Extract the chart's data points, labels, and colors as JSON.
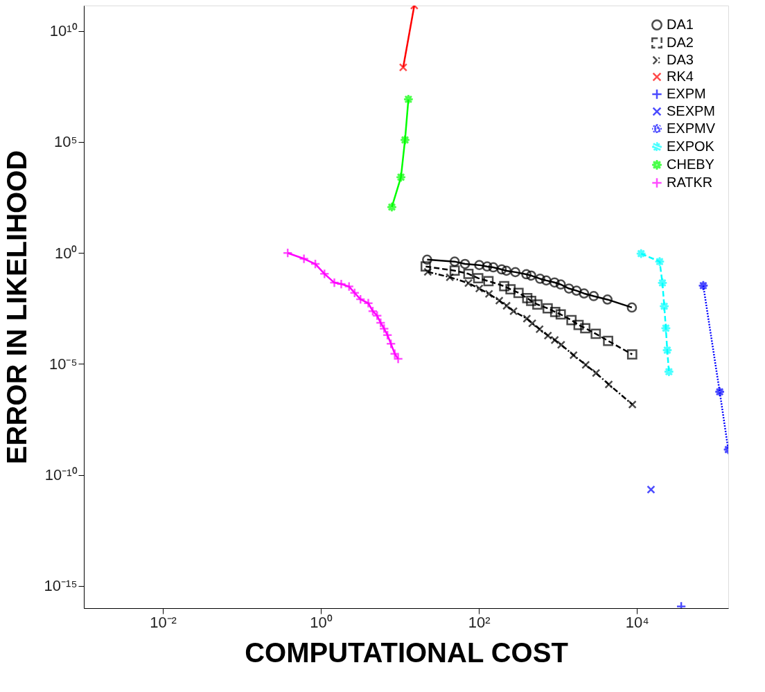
{
  "chart_data": {
    "type": "line",
    "xlabel": "COMPUTATIONAL COST",
    "ylabel": "ERROR IN LIKELIHOOD",
    "log": "xy",
    "grid": false,
    "legend": "top right",
    "xlim": [
      0.001,
      143000
    ],
    "ylim": [
      1e-16,
      140000000000.0
    ],
    "xticks": [
      {
        "value": 0.01,
        "label": "10⁻²"
      },
      {
        "value": 1,
        "label": "10⁰"
      },
      {
        "value": 100,
        "label": "10²"
      },
      {
        "value": 10000,
        "label": "10⁴"
      }
    ],
    "yticks": [
      {
        "value": 1e-15,
        "label": "10⁻¹⁵"
      },
      {
        "value": 1e-10,
        "label": "10⁻¹⁰"
      },
      {
        "value": 1e-05,
        "label": "10⁻⁵"
      },
      {
        "value": 1,
        "label": "10⁰"
      },
      {
        "value": 100000,
        "label": "10⁵"
      },
      {
        "value": 10000000000.0,
        "label": "10¹⁰"
      }
    ],
    "series": [
      {
        "name": "DA1",
        "color": "#000000",
        "marker": "circle",
        "line_style": "solid",
        "x": [
          22.1,
          49.3,
          66.6,
          101,
          127,
          152,
          194,
          223,
          289,
          398,
          458,
          594,
          711,
          905,
          1084,
          1378,
          1718,
          2140,
          2833,
          4227,
          8620
        ],
        "values": [
          0.5,
          0.41,
          0.32,
          0.286,
          0.247,
          0.225,
          0.182,
          0.158,
          0.137,
          0.11,
          0.096,
          0.069,
          0.058,
          0.047,
          0.038,
          0.025,
          0.02,
          0.015,
          0.0114,
          0.008,
          0.0035
        ]
      },
      {
        "name": "DA2",
        "color": "#000000",
        "marker": "square",
        "line_style": "dashed",
        "x": [
          21.2,
          49.3,
          73.6,
          98,
          132,
          209,
          251,
          317,
          409,
          458,
          549,
          741,
          923,
          1084,
          1483,
          1824,
          2214,
          3008,
          4313,
          8690
        ],
        "values": [
          0.247,
          0.16,
          0.115,
          0.073,
          0.054,
          0.032,
          0.023,
          0.016,
          0.0092,
          0.0069,
          0.0048,
          0.0032,
          0.0022,
          0.0017,
          0.00094,
          0.00057,
          0.00041,
          0.00023,
          0.00011,
          2.7e-05
        ]
      },
      {
        "name": "DA3",
        "color": "#000000",
        "marker": "cross",
        "line_style": "dashdot",
        "x": [
          22.5,
          42.8,
          73.6,
          101,
          134,
          181,
          224,
          274,
          404,
          473,
          586,
          747,
          912,
          1099,
          1574,
          2244,
          3034,
          4400,
          8750
        ],
        "values": [
          0.141,
          0.081,
          0.044,
          0.025,
          0.0144,
          0.0071,
          0.0042,
          0.0024,
          0.0011,
          0.00068,
          0.00037,
          0.00019,
          0.00012,
          7.3e-05,
          2.5e-05,
          9.1e-06,
          3.9e-06,
          1.2e-06,
          1.5e-07
        ]
      },
      {
        "name": "RK4",
        "color": "#ff0000",
        "marker": "cross",
        "line_style": "solid",
        "x": [
          11.0,
          15.2
        ],
        "values": [
          230000000,
          140000000000
        ]
      },
      {
        "name": "EXPM",
        "color": "#0000ff",
        "marker": "plus",
        "line_style": "solid",
        "x": [
          36300
        ],
        "values": [
          1.2e-16
        ]
      },
      {
        "name": "SEXPM",
        "color": "#0000ff",
        "marker": "cross",
        "line_style": "solid",
        "x": [
          15040
        ],
        "values": [
          2.2e-11
        ]
      },
      {
        "name": "EXPMV",
        "color": "#0000ff",
        "marker": "star",
        "line_style": "dotted",
        "x": [
          69000,
          111400,
          143000
        ],
        "values": [
          0.034,
          5.6e-07,
          1.4e-09
        ]
      },
      {
        "name": "EXPOK",
        "color": "#00ffff",
        "marker": "star",
        "line_style": "dashed",
        "x": [
          11270,
          19360,
          20980,
          22130,
          23180,
          24150,
          25360
        ],
        "values": [
          0.94,
          0.41,
          0.045,
          0.004,
          0.00041,
          4.2e-05,
          4.5e-06
        ]
      },
      {
        "name": "CHEBY",
        "color": "#00ff00",
        "marker": "star",
        "line_style": "solid",
        "x": [
          7.9,
          10.3,
          11.6,
          12.8
        ],
        "values": [
          117,
          2600,
          124000,
          8400000
        ]
      },
      {
        "name": "RATKR",
        "color": "#ff00ff",
        "marker": "plus",
        "line_style": "solid",
        "x": [
          0.38,
          0.61,
          0.85,
          1.11,
          1.48,
          1.81,
          2.27,
          2.67,
          3.17,
          3.98,
          4.53,
          5.15,
          5.7,
          6.31,
          6.96,
          7.7,
          8.6,
          9.5
        ],
        "values": [
          1.0,
          0.55,
          0.32,
          0.115,
          0.046,
          0.04,
          0.031,
          0.016,
          0.0082,
          0.0055,
          0.0024,
          0.0015,
          0.00072,
          0.00039,
          0.0002,
          8.1e-05,
          2.9e-05,
          1.7e-05
        ]
      }
    ]
  }
}
